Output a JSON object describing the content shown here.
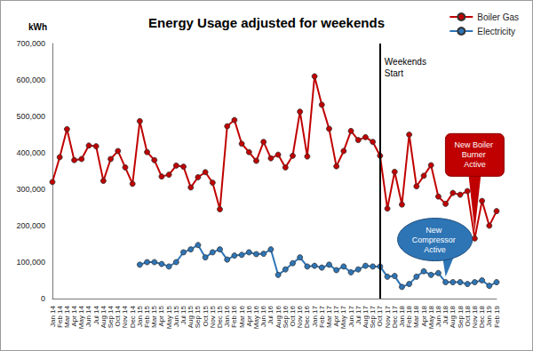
{
  "chart_data": {
    "type": "line",
    "title": "Energy Usage adjusted for weekends",
    "y_label": "kWh",
    "categories": [
      "Jan 14",
      "Feb 14",
      "Mar 14",
      "Apr 14",
      "May 14",
      "Jun 14",
      "Jul 14",
      "Aug 14",
      "Sep 14",
      "Oct 14",
      "Nov 14",
      "Dec 14",
      "Jan 15",
      "Feb 15",
      "Mar 15",
      "Apr 15",
      "May 15",
      "Jun 15",
      "Jul 15",
      "Aug 15",
      "Sep 15",
      "Oct 15",
      "Nov 15",
      "Dec 15",
      "Jan 16",
      "Feb 16",
      "Mar 16",
      "Apr 16",
      "May 16",
      "Jun 16",
      "Jul 16",
      "Aug 16",
      "Sep 16",
      "Oct 16",
      "Nov 16",
      "Dec 16",
      "Jan 17",
      "Feb 17",
      "Mar 17",
      "Apr 17",
      "May 17",
      "Jun 17",
      "Jul 17",
      "Aug 17",
      "Sep 17",
      "Oct 17",
      "Nov 17",
      "Dec 17",
      "Jan 18",
      "Feb 18",
      "Mar 18",
      "Apr 18",
      "May 18",
      "Jun 18",
      "Jul 18",
      "Aug 18",
      "Sep 18",
      "Oct 18",
      "Nov 18",
      "Dec 18",
      "Jan 19",
      "Feb 19"
    ],
    "series": [
      {
        "name": "Boiler Gas",
        "color": "#c00000",
        "marker": "circle",
        "line_style": "solid",
        "values": [
          320000,
          388000,
          465000,
          380000,
          383000,
          420000,
          418000,
          323000,
          383000,
          405000,
          360000,
          315000,
          487000,
          402000,
          380000,
          335000,
          340000,
          365000,
          362000,
          305000,
          333000,
          347000,
          318000,
          245000,
          473000,
          490000,
          425000,
          402000,
          378000,
          430000,
          385000,
          395000,
          360000,
          392000,
          513000,
          390000,
          610000,
          532000,
          466000,
          363000,
          405000,
          460000,
          435000,
          443000,
          430000,
          392000,
          247000,
          348000,
          258000,
          450000,
          308000,
          337000,
          366000,
          280000,
          260000,
          290000,
          285000,
          295000,
          165000,
          268000,
          200000,
          240000
        ]
      },
      {
        "name": "Electricity",
        "color": "#2e75b6",
        "marker": "circle",
        "line_style": "solid",
        "values": [
          null,
          null,
          null,
          null,
          null,
          null,
          null,
          null,
          null,
          null,
          null,
          null,
          93000,
          100000,
          100000,
          95000,
          88000,
          100000,
          127000,
          135000,
          147000,
          113000,
          127000,
          135000,
          107000,
          118000,
          120000,
          127000,
          122000,
          123000,
          135000,
          65000,
          80000,
          97000,
          113000,
          88000,
          90000,
          85000,
          93000,
          78000,
          88000,
          72000,
          80000,
          90000,
          88000,
          88000,
          60000,
          62000,
          32000,
          40000,
          60000,
          75000,
          65000,
          70000,
          45000,
          45000,
          45000,
          40000,
          45000,
          50000,
          35000,
          45000
        ]
      }
    ],
    "ylim": [
      0,
      700000
    ],
    "yticks": [
      0,
      {
        "value": 100000,
        "label": "100,000"
      },
      {
        "value": 200000,
        "label": "200,000"
      },
      {
        "value": 300000,
        "label": "300,000"
      },
      {
        "value": 400000,
        "label": "400,000"
      },
      {
        "value": 500000,
        "label": "500,000"
      },
      {
        "value": 600000,
        "label": "600,000"
      },
      {
        "value": 700000,
        "label": "700,000"
      }
    ],
    "grid": false,
    "legend": "top-right",
    "vertical_lines": [
      {
        "at": "Oct 17",
        "label": "Weekends Start"
      }
    ],
    "callouts": [
      {
        "text": "New Boiler Burner Active",
        "series": "Boiler Gas",
        "at": "Nov 18"
      },
      {
        "text": "New Compressor Active",
        "series": "Electricity",
        "at": "Jul 18"
      }
    ]
  }
}
